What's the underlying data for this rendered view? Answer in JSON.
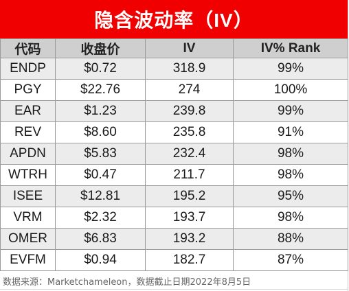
{
  "title": "隐含波动率（IV）",
  "columns": [
    "代码",
    "收盘价",
    "IV",
    "IV% Rank"
  ],
  "rows": [
    [
      "ENDP",
      "$0.72",
      "318.9",
      "99%"
    ],
    [
      "PGY",
      "$22.76",
      "274",
      "100%"
    ],
    [
      "EAR",
      "$1.23",
      "239.8",
      "99%"
    ],
    [
      "REV",
      "$8.60",
      "235.8",
      "91%"
    ],
    [
      "APDN",
      "$5.83",
      "232.4",
      "98%"
    ],
    [
      "WTRH",
      "$0.47",
      "211.7",
      "98%"
    ],
    [
      "ISEE",
      "$12.81",
      "195.2",
      "95%"
    ],
    [
      "VRM",
      "$2.32",
      "193.7",
      "98%"
    ],
    [
      "OMER",
      "$6.83",
      "193.2",
      "88%"
    ],
    [
      "EVFM",
      "$0.94",
      "182.7",
      "87%"
    ]
  ],
  "source": "数据来源：Marketchameleon，数据截止日期2022年8月5日",
  "colors": {
    "title_bg": "#f00000",
    "header_bg": "#cfcfcf",
    "stripe_bg": "#ececec"
  }
}
